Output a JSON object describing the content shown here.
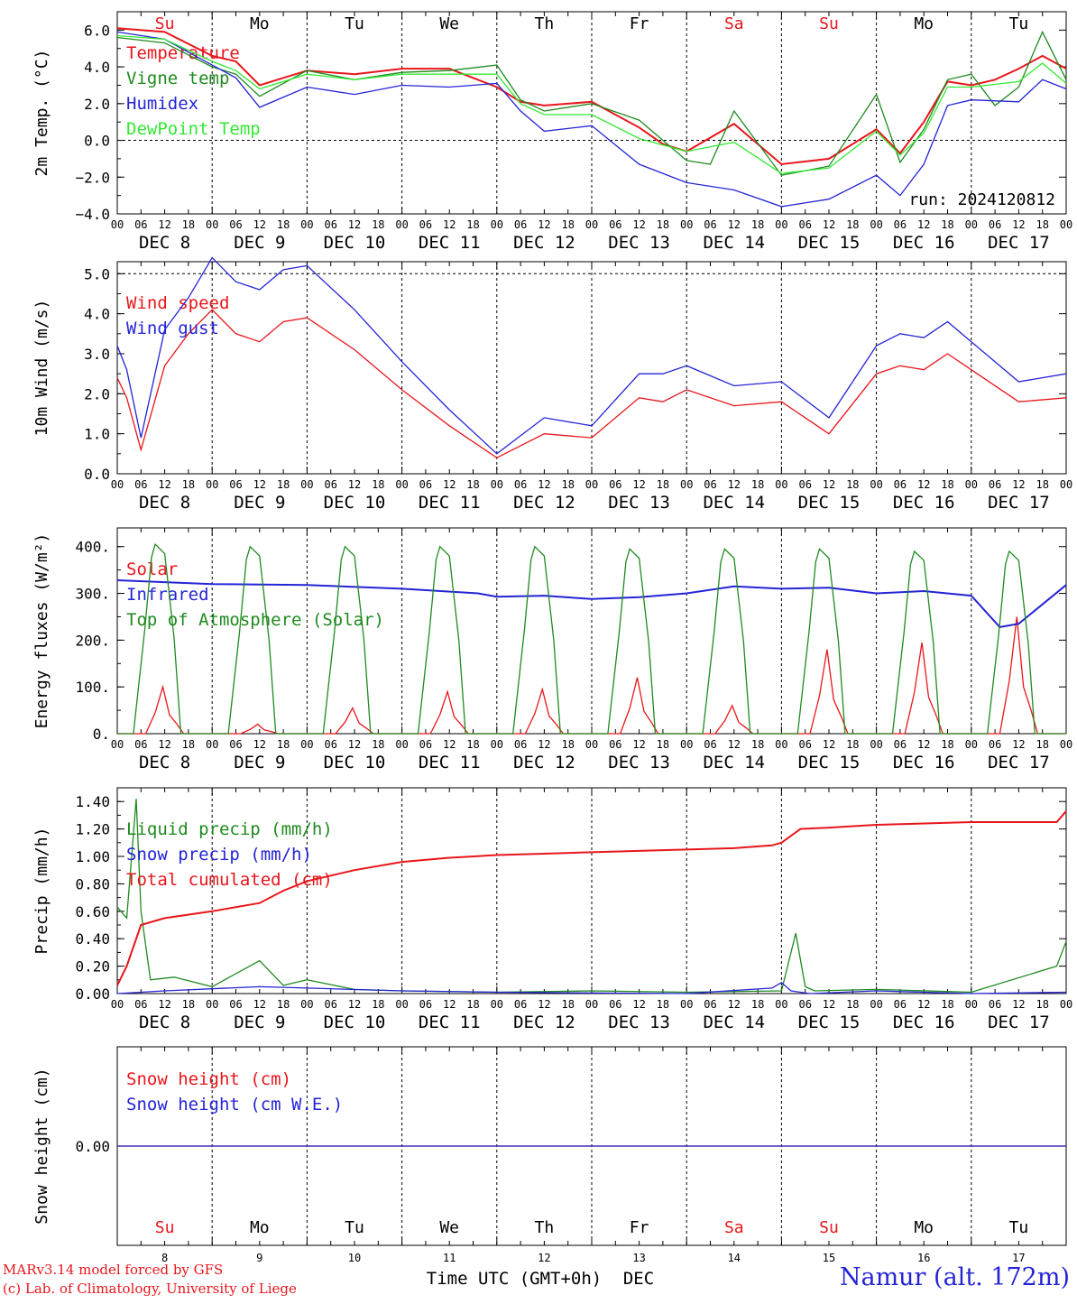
{
  "chart_data": [
    {
      "type": "line",
      "ylabel": "2m Temp. (°C)",
      "ylim": [
        -4,
        7
      ],
      "yticks": [
        "−4.0",
        "−2.0",
        "0.0",
        "2.0",
        "4.0",
        "6.0"
      ],
      "ytick_values": [
        -4,
        -2,
        0,
        2,
        4,
        6
      ],
      "dashed_ref": [
        0
      ],
      "run_label": "run: 2024120812",
      "series": [
        {
          "name": "Temperature",
          "color": "#e8161b",
          "x": [
            0,
            0.5,
            1,
            1.25,
            1.5,
            2,
            2.5,
            3,
            3.5,
            3.75,
            4,
            4.25,
            4.5,
            5,
            5.5,
            5.75,
            6,
            6.5,
            7,
            7.5,
            8,
            8.25,
            8.5,
            8.75,
            9,
            9.25,
            9.5,
            9.75,
            10
          ],
          "values": [
            6.1,
            5.9,
            4.6,
            4.3,
            3.0,
            3.8,
            3.6,
            3.9,
            3.9,
            3.4,
            2.9,
            2.1,
            1.9,
            2.1,
            0.7,
            -0.2,
            -0.6,
            0.9,
            -1.3,
            -1.0,
            0.6,
            -0.7,
            1.0,
            3.2,
            3.0,
            3.3,
            3.9,
            4.6,
            3.9
          ]
        },
        {
          "name": "Vigne temp",
          "color": "#1f8a1f",
          "x": [
            0,
            0.5,
            1,
            1.25,
            1.5,
            2,
            2.5,
            3,
            3.5,
            4,
            4.25,
            4.5,
            5,
            5.5,
            6,
            6.25,
            6.5,
            7,
            7.5,
            8,
            8.25,
            8.5,
            8.75,
            9,
            9.25,
            9.5,
            9.75,
            10
          ],
          "values": [
            5.6,
            5.3,
            4.0,
            3.6,
            2.4,
            3.8,
            3.3,
            3.7,
            3.8,
            4.1,
            2.2,
            1.6,
            2.0,
            1.1,
            -1.1,
            -1.3,
            1.6,
            -1.9,
            -1.4,
            2.5,
            -1.2,
            0.6,
            3.3,
            3.6,
            1.9,
            2.9,
            5.9,
            3.3
          ]
        },
        {
          "name": "Humidex",
          "color": "#2424d6",
          "x": [
            0,
            0.5,
            1,
            1.25,
            1.5,
            2,
            2.5,
            3,
            3.5,
            4,
            4.25,
            4.5,
            5,
            5.5,
            6,
            6.5,
            7,
            7.5,
            8,
            8.25,
            8.5,
            8.75,
            9,
            9.5,
            9.75,
            10
          ],
          "values": [
            5.9,
            5.5,
            4.1,
            3.4,
            1.8,
            2.9,
            2.5,
            3.0,
            2.9,
            3.1,
            1.6,
            0.5,
            0.8,
            -1.3,
            -2.3,
            -2.7,
            -3.6,
            -3.2,
            -1.9,
            -3.0,
            -1.3,
            1.9,
            2.2,
            2.1,
            3.3,
            2.8
          ]
        },
        {
          "name": "DewPoint Temp",
          "color": "#34e834",
          "x": [
            0,
            0.5,
            1,
            1.25,
            1.5,
            2,
            2.5,
            3,
            3.5,
            4,
            4.25,
            4.5,
            5,
            5.5,
            6,
            6.5,
            7,
            7.5,
            8,
            8.25,
            8.5,
            8.75,
            9,
            9.5,
            9.75,
            10
          ],
          "values": [
            5.7,
            5.5,
            4.3,
            3.8,
            2.8,
            3.6,
            3.3,
            3.6,
            3.6,
            3.6,
            2.0,
            1.4,
            1.4,
            0.1,
            -0.6,
            -0.1,
            -1.8,
            -1.5,
            0.5,
            -0.8,
            0.4,
            2.9,
            2.9,
            3.2,
            4.2,
            3.1
          ]
        }
      ]
    },
    {
      "type": "line",
      "ylabel": "10m Wind (m/s)",
      "ylim": [
        0,
        5.3
      ],
      "yticks": [
        "0.0",
        "1.0",
        "2.0",
        "3.0",
        "4.0",
        "5.0"
      ],
      "ytick_values": [
        0,
        1,
        2,
        3,
        4,
        5
      ],
      "dashed_ref": [
        5
      ],
      "series": [
        {
          "name": "Wind speed",
          "color": "#e8161b",
          "x": [
            0,
            0.1,
            0.25,
            0.5,
            0.75,
            1,
            1.25,
            1.5,
            1.75,
            2,
            2.5,
            3,
            3.5,
            4,
            4.5,
            5,
            5.5,
            5.75,
            6,
            6.5,
            7,
            7.5,
            8,
            8.25,
            8.5,
            8.75,
            9,
            9.5,
            10
          ],
          "values": [
            2.4,
            1.9,
            0.6,
            2.7,
            3.5,
            4.1,
            3.5,
            3.3,
            3.8,
            3.9,
            3.1,
            2.1,
            1.2,
            0.4,
            1.0,
            0.9,
            1.9,
            1.8,
            2.1,
            1.7,
            1.8,
            1.0,
            2.5,
            2.7,
            2.6,
            3.0,
            2.6,
            1.8,
            1.9
          ]
        },
        {
          "name": "Wind gust",
          "color": "#2424d6",
          "x": [
            0,
            0.1,
            0.25,
            0.5,
            0.75,
            1,
            1.25,
            1.5,
            1.75,
            2,
            2.5,
            3,
            3.5,
            4,
            4.5,
            5,
            5.5,
            5.75,
            6,
            6.5,
            7,
            7.5,
            8,
            8.25,
            8.5,
            8.75,
            9,
            9.5,
            10
          ],
          "values": [
            3.2,
            2.6,
            0.9,
            3.6,
            4.4,
            5.4,
            4.8,
            4.6,
            5.1,
            5.2,
            4.1,
            2.8,
            1.6,
            0.5,
            1.4,
            1.2,
            2.5,
            2.5,
            2.7,
            2.2,
            2.3,
            1.4,
            3.2,
            3.5,
            3.4,
            3.8,
            3.3,
            2.3,
            2.5
          ]
        }
      ]
    },
    {
      "type": "line",
      "ylabel": "Energy fluxes (W/m²)",
      "ylim": [
        0,
        440
      ],
      "yticks": [
        "0.",
        "100.",
        "200.",
        "300.",
        "400."
      ],
      "ytick_values": [
        0,
        100,
        200,
        300,
        400
      ],
      "series": [
        {
          "name": "Solar",
          "color": "#e8161b",
          "day_peaks": [
            100,
            20,
            55,
            90,
            95,
            120,
            60,
            180,
            195,
            250
          ]
        },
        {
          "name": "Infrared",
          "color": "#2424d6",
          "x": [
            0,
            1,
            2,
            3,
            3.8,
            4,
            4.5,
            5,
            5.5,
            6,
            6.5,
            7,
            7.5,
            8,
            8.5,
            9,
            9.3,
            9.5,
            10
          ],
          "values": [
            328,
            320,
            318,
            310,
            300,
            293,
            295,
            288,
            292,
            300,
            315,
            310,
            312,
            300,
            305,
            295,
            228,
            235,
            318
          ]
        },
        {
          "name": "Top of Atmosphere (Solar)",
          "color": "#1f8a1f",
          "day_peaks": [
            405,
            400,
            400,
            400,
            400,
            395,
            395,
            395,
            390,
            390
          ]
        }
      ]
    },
    {
      "type": "line",
      "ylabel": "Precip (mm/h)",
      "ylim": [
        0,
        1.5
      ],
      "yticks": [
        "0.00",
        "0.20",
        "0.40",
        "0.60",
        "0.80",
        "1.00",
        "1.20",
        "1.40"
      ],
      "ytick_values": [
        0,
        0.2,
        0.4,
        0.6,
        0.8,
        1.0,
        1.2,
        1.4
      ],
      "series": [
        {
          "name": "Liquid precip (mm/h)",
          "color": "#1f8a1f",
          "x": [
            0,
            0.1,
            0.2,
            0.25,
            0.35,
            0.6,
            1.0,
            1.5,
            1.75,
            2.0,
            2.5,
            3.0,
            4.0,
            5.0,
            6.0,
            7.0,
            7.15,
            7.25,
            7.35,
            8.0,
            9.0,
            9.9,
            10.0
          ],
          "values": [
            0.63,
            0.55,
            1.42,
            0.6,
            0.1,
            0.12,
            0.05,
            0.24,
            0.06,
            0.1,
            0.03,
            0.02,
            0.01,
            0.02,
            0.01,
            0.02,
            0.44,
            0.05,
            0.02,
            0.03,
            0.01,
            0.2,
            0.38
          ]
        },
        {
          "name": "Snow precip (mm/h)",
          "color": "#2424d6",
          "x": [
            0,
            0.5,
            1.5,
            2.0,
            3.0,
            4.0,
            6.0,
            6.9,
            7.0,
            7.1,
            7.3,
            8.0,
            9.0,
            10.0
          ],
          "values": [
            0.0,
            0.02,
            0.05,
            0.04,
            0.02,
            0.01,
            0.0,
            0.04,
            0.08,
            0.02,
            0.0,
            0.02,
            0.0,
            0.01
          ]
        },
        {
          "name": "Total cumulated (cm)",
          "color": "#e8161b",
          "x": [
            0,
            0.1,
            0.25,
            0.5,
            1.0,
            1.5,
            1.75,
            2.0,
            2.5,
            3.0,
            3.5,
            4.0,
            4.5,
            5.0,
            6.0,
            6.5,
            6.9,
            7.0,
            7.2,
            7.5,
            8.0,
            9.0,
            9.9,
            10.0
          ],
          "values": [
            0.06,
            0.2,
            0.5,
            0.55,
            0.6,
            0.66,
            0.75,
            0.82,
            0.9,
            0.96,
            0.99,
            1.01,
            1.02,
            1.03,
            1.05,
            1.06,
            1.08,
            1.1,
            1.2,
            1.21,
            1.23,
            1.25,
            1.25,
            1.33
          ]
        }
      ]
    },
    {
      "type": "line",
      "ylabel": "Snow height (cm)",
      "yticks": [
        "0.00"
      ],
      "series": [
        {
          "name": "Snow height (cm)",
          "color": "#e8161b",
          "values": [
            0,
            0
          ]
        },
        {
          "name": "Snow height (cm W.E.)",
          "color": "#2424d6",
          "values": [
            0,
            0
          ]
        }
      ]
    }
  ],
  "axis": {
    "hour_ticks": [
      "00",
      "06",
      "12",
      "18"
    ],
    "date_labels": [
      "DEC  8",
      "DEC  9",
      "DEC 10",
      "DEC 11",
      "DEC 12",
      "DEC 13",
      "DEC 14",
      "DEC 15",
      "DEC 16",
      "DEC 17"
    ],
    "days": [
      {
        "abbr": "Su",
        "num": "8",
        "color": "#e8161b"
      },
      {
        "abbr": "Mo",
        "num": "9",
        "color": "#000000"
      },
      {
        "abbr": "Tu",
        "num": "10",
        "color": "#000000"
      },
      {
        "abbr": "We",
        "num": "11",
        "color": "#000000"
      },
      {
        "abbr": "Th",
        "num": "12",
        "color": "#000000"
      },
      {
        "abbr": "Fr",
        "num": "13",
        "color": "#000000"
      },
      {
        "abbr": "Sa",
        "num": "14",
        "color": "#e8161b"
      },
      {
        "abbr": "Su",
        "num": "15",
        "color": "#e8161b"
      },
      {
        "abbr": "Mo",
        "num": "16",
        "color": "#000000"
      },
      {
        "abbr": "Tu",
        "num": "17",
        "color": "#000000"
      }
    ],
    "xlabel": "Time UTC (GMT+0h)",
    "xlabel_month": "DEC"
  },
  "footer": {
    "model_line1": "MARv3.14 model forced by GFS",
    "model_line2": "(c) Lab. of Climatology, University of Liege",
    "station": "Namur (alt. 172m)"
  }
}
